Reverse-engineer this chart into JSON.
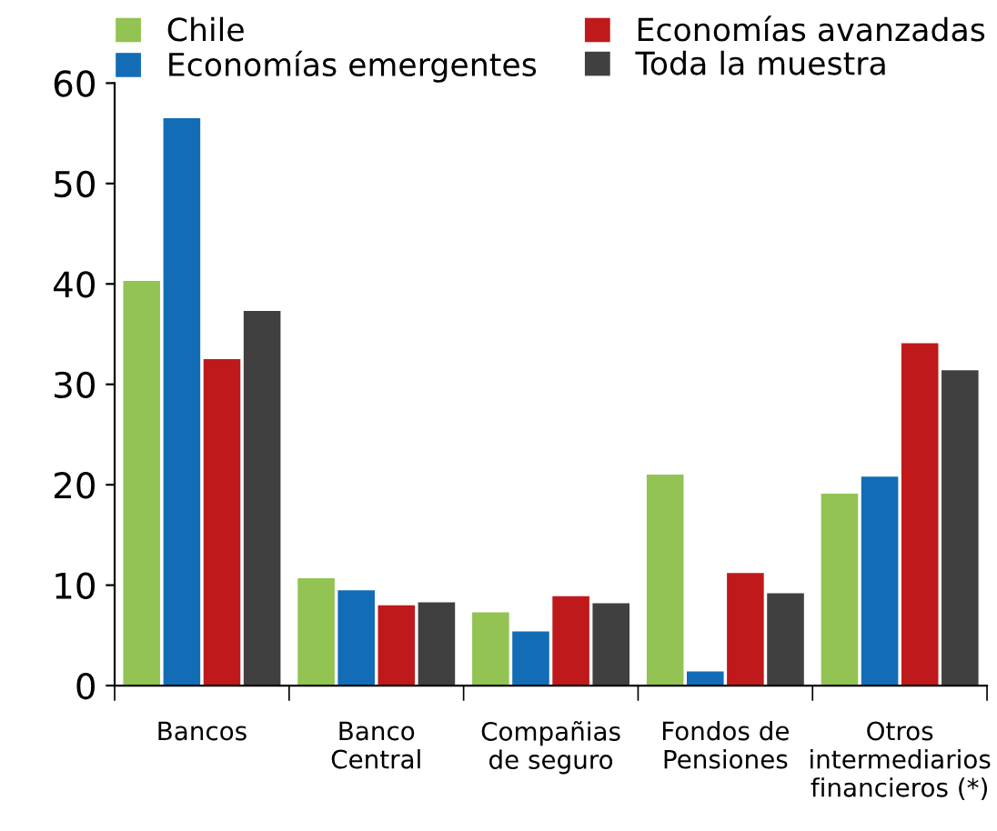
{
  "chart_data": {
    "type": "bar",
    "categories": [
      "Bancos",
      "Banco\nCentral",
      "Compañias\nde seguro",
      "Fondos de\nPensiones",
      "Otros\nintermediarios\nfinancieros (*)"
    ],
    "series": [
      {
        "name": "Chile",
        "color": "#92c353",
        "values": [
          40.3,
          10.7,
          7.3,
          21.0,
          19.1
        ]
      },
      {
        "name": "Economías emergentes",
        "color": "#136db6",
        "values": [
          56.5,
          9.5,
          5.4,
          1.4,
          20.8
        ]
      },
      {
        "name": "Economías avanzadas",
        "color": "#c0191b",
        "values": [
          32.5,
          8.0,
          8.9,
          11.2,
          34.1
        ]
      },
      {
        "name": "Toda la muestra",
        "color": "#404040",
        "values": [
          37.3,
          8.3,
          8.2,
          9.2,
          31.4
        ]
      }
    ],
    "ylim": [
      0,
      60
    ],
    "yticks": [
      0,
      10,
      20,
      30,
      40,
      50,
      60
    ],
    "grid": false,
    "legend": "top"
  }
}
